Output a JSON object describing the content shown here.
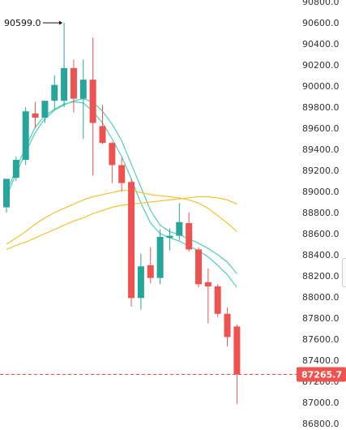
{
  "chart_data": {
    "type": "candlestick",
    "y_axis_ticks": [
      "90800.0",
      "90600.0",
      "90400.0",
      "90200.0",
      "90000.0",
      "89800.0",
      "89600.0",
      "89400.0",
      "89200.0",
      "89000.0",
      "88800.0",
      "88600.0",
      "88400.0",
      "88200.0",
      "88000.0",
      "87800.0",
      "87600.0",
      "87400.0",
      "87200.0",
      "87000.0",
      "86800.0"
    ],
    "ylim": [
      86800,
      90800
    ],
    "high_marker": {
      "label": "90599.0",
      "value": 90599.0,
      "arrow": "right"
    },
    "current_price": {
      "label": "87265.7",
      "value": 87265.7
    },
    "grid": false,
    "colors": {
      "up": "#26a69a",
      "down": "#ef5350",
      "ma_fast": "#4dd0b5",
      "ma_slow": "#f2c230",
      "price_line": "#ef5350",
      "badge": "#ef5350"
    },
    "candles": [
      {
        "o": 88850,
        "h": 89100,
        "l": 88800,
        "c": 89120
      },
      {
        "o": 89130,
        "h": 89330,
        "l": 89100,
        "c": 89300
      },
      {
        "o": 89300,
        "h": 89800,
        "l": 89250,
        "c": 89760
      },
      {
        "o": 89740,
        "h": 89850,
        "l": 89600,
        "c": 89700
      },
      {
        "o": 89700,
        "h": 89850,
        "l": 89650,
        "c": 89860
      },
      {
        "o": 89860,
        "h": 90100,
        "l": 89780,
        "c": 90010
      },
      {
        "o": 89860,
        "h": 90599,
        "l": 89800,
        "c": 90170
      },
      {
        "o": 90170,
        "h": 90250,
        "l": 89750,
        "c": 89880
      },
      {
        "o": 89880,
        "h": 90250,
        "l": 89500,
        "c": 90060
      },
      {
        "o": 90060,
        "h": 90460,
        "l": 89150,
        "c": 89650
      },
      {
        "o": 89620,
        "h": 89820,
        "l": 89450,
        "c": 89460
      },
      {
        "o": 89460,
        "h": 89470,
        "l": 89080,
        "c": 89250
      },
      {
        "o": 89250,
        "h": 89320,
        "l": 89000,
        "c": 89080
      },
      {
        "o": 89090,
        "h": 89120,
        "l": 87910,
        "c": 87990
      },
      {
        "o": 87990,
        "h": 88410,
        "l": 87880,
        "c": 88290
      },
      {
        "o": 88300,
        "h": 88470,
        "l": 88130,
        "c": 88180
      },
      {
        "o": 88180,
        "h": 88640,
        "l": 88120,
        "c": 88570
      },
      {
        "o": 88560,
        "h": 88650,
        "l": 88440,
        "c": 88580
      },
      {
        "o": 88580,
        "h": 88890,
        "l": 88540,
        "c": 88710
      },
      {
        "o": 88700,
        "h": 88800,
        "l": 88430,
        "c": 88450
      },
      {
        "o": 88450,
        "h": 88470,
        "l": 88090,
        "c": 88120
      },
      {
        "o": 88140,
        "h": 88270,
        "l": 87750,
        "c": 88100
      },
      {
        "o": 88100,
        "h": 88120,
        "l": 87810,
        "c": 87840
      },
      {
        "o": 87840,
        "h": 87900,
        "l": 87530,
        "c": 87620
      },
      {
        "o": 87720,
        "h": 87740,
        "l": 86985,
        "c": 87265.7
      }
    ],
    "ma_fast_a": [
      88990,
      89210,
      89420,
      89610,
      89720,
      89780,
      89830,
      89850,
      89840,
      89760,
      89650,
      89500,
      89330,
      89120,
      88890,
      88700,
      88600,
      88560,
      88530,
      88480,
      88440,
      88380,
      88300,
      88210,
      88090
    ],
    "ma_fast_b": [
      88950,
      89170,
      89370,
      89560,
      89690,
      89770,
      89820,
      89860,
      89880,
      89850,
      89760,
      89640,
      89480,
      89260,
      89040,
      88820,
      88680,
      88620,
      88590,
      88550,
      88510,
      88460,
      88400,
      88330,
      88220
    ],
    "ma_slow_a": [
      88500,
      88560,
      88620,
      88690,
      88750,
      88800,
      88840,
      88880,
      88920,
      88950,
      88970,
      88990,
      89010,
      89010,
      88990,
      88970,
      88960,
      88950,
      88940,
      88920,
      88890,
      88840,
      88770,
      88700,
      88620
    ],
    "ma_slow_b": [
      88450,
      88490,
      88520,
      88560,
      88600,
      88640,
      88680,
      88720,
      88750,
      88790,
      88820,
      88850,
      88870,
      88880,
      88890,
      88900,
      88910,
      88920,
      88930,
      88940,
      88950,
      88950,
      88940,
      88920,
      88880
    ]
  }
}
